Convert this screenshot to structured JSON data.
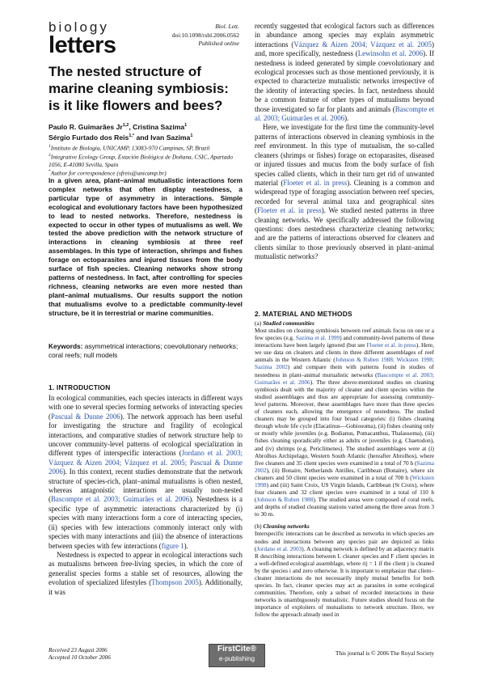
{
  "journal": {
    "logo_line1": "biology",
    "logo_line2": "letters",
    "name": "Biol. Lett.",
    "doi": "doi:10.1098/rsbl.2006.0562",
    "status": "Published online"
  },
  "title": "The nested structure of marine cleaning symbiosis: is it like flowers and bees?",
  "authors": {
    "line1": "Paulo R. Guimarães Jr",
    "line1_sup": "1,2",
    "name2": ", Cristina Sazima",
    "name2_sup": "1",
    "line2": "Sérgio Furtado dos Reis",
    "line2_sup": "1,*",
    "name4": " and Ivan Sazima",
    "name4_sup": "1"
  },
  "affiliations": [
    {
      "num": "1",
      "text": "Instituto de Biologia, UNICAMP, 13083-970 Campinas, SP, Brazil"
    },
    {
      "num": "2",
      "text": "Integrative Ecology Group, Estación Biológica de Doñana, CSIC, Apartado 1056, E-41080 Sevilla, Spain"
    },
    {
      "num": "*",
      "text": "Author for correspondence (sfreis@unicamp.br)"
    }
  ],
  "abstract": "In a given area, plant–animal mutualistic interactions form complex networks that often display nestedness, a particular type of asymmetry in interactions. Simple ecological and evolutionary factors have been hypothesized to lead to nested networks. Therefore, nestedness is expected to occur in other types of mutualisms as well. We tested the above prediction with the network structure of interactions in cleaning symbiosis at three reef assemblages. In this type of interaction, shrimps and fishes forage on ectoparasites and injured tissues from the body surface of fish species. Cleaning networks show strong patterns of nestedness. In fact, after controlling for species richness, cleaning networks are even more nested than plant–animal mutualisms. Our results support the notion that mutualisms evolve to a predictable community-level structure, be it in terrestrial or marine communities.",
  "keywords": {
    "label": "Keywords:",
    "text": " asymmetrical interactions; coevolutionary networks; coral reefs; null models"
  },
  "intro": {
    "heading": "1. INTRODUCTION",
    "p1_a": "In ecological communities, each species interacts in different ways with one to several species forming networks of interacting species (",
    "p1_c1": "Pascual & Dunne 2006",
    "p1_b": "). The network approach has been useful for investigating the structure and fragility of ecological interactions, and comparative studies of network structure help to uncover community-level patterns of ecological specialization in different types of interspecific interactions (",
    "p1_c2": "Jordano et al. 2003; Vázquez & Aizen 2004; Vázquez et al. 2005; Pascual & Dunne 2006",
    "p1_c": "). In this context, recent studies demonstrate that the network structure of species-rich, plant–animal mutualisms is often nested, whereas antagonistic interactions are usually non-nested (",
    "p1_c3": "Bascompte et al. 2003; Guimarães et al. 2006",
    "p1_d": "). Nestedness is a specific type of asymmetric interactions characterized by (i) species with many interactions form a core of interacting species, (ii) species with few interactions commonly interact only with species with many interactions and (iii) the absence of interactions between species with few interactions (",
    "p1_c4": "figure 1",
    "p1_e": ").",
    "p2_a": "Nestedness is expected to appear in ecological interactions such as mutualisms between free-living species, in which the core of generalist species forms a stable set of resources, allowing the evolution of specialized lifestyles (",
    "p2_c1": "Thompson 2005",
    "p2_b": "). Additionally, it was"
  },
  "right_col": {
    "p1_a": "recently suggested that ecological factors such as differences in abundance among species may explain asymmetric interactions (",
    "p1_c1": "Vázquez & Aizen 2004; Vázquez et al. 2005",
    "p1_b": ") and, more specifically, nestedness (",
    "p1_c2": "Lewinsohn et al. 2006",
    "p1_c": "). If nestedness is indeed generated by simple coevolutionary and ecological processes such as those mentioned previously, it is expected to characterize mutualistic networks irrespective of the identity of interacting species. In fact, nestedness should be a common feature of other types of mutualisms beyond those investigated so far for plants and animals (",
    "p1_c3": "Bascompte et al. 2003; Guimarães et al. 2006",
    "p1_d": ").",
    "p2_a": "Here, we investigate for the first time the community-level patterns of interactions observed in cleaning symbiosis in the reef environment. In this type of mutualism, the so-called cleaners (shrimps or fishes) forage on ectoparasites, diseased or injured tissues and mucus from the body surface of fish species called clients, which in their turn get rid of unwanted material (",
    "p2_c1": "Floeter et al. in press",
    "p2_b": "). Cleaning is a common and widespread type of foraging association between reef species, recorded for several animal taxa and geographical sites (",
    "p2_c2": "Floeter et al. in press",
    "p2_c": "). We studied nested patterns in three cleaning networks. We specifically addressed the following questions: does nestedness characterize cleaning networks; and are the patterns of interactions observed for cleaners and clients similar to those previously observed in plant–animal mutualistic networks?"
  },
  "methods": {
    "heading": "2. MATERIAL AND METHODS",
    "sub_a_label": "(a)",
    "sub_a_title": "Studied communities",
    "a_text_1": "Most studies on cleaning symbiosis between reef animals focus on one or a few species (e.g. ",
    "a_c1": "Sazima et al. 1999",
    "a_text_2": ") and community-level patterns of these interactions have been largely ignored (but see ",
    "a_c2": "Floeter et al. in press",
    "a_text_3": "). Here, we use data on cleaners and clients in three different assemblages of reef animals in the Western Atlantic (",
    "a_c3": "Johnson & Ruben 1988; Wicksten 1998; Sazima 2002",
    "a_text_4": ") and compare them with patterns found in studies of nestedness in plant–animal mutualistic networks (",
    "a_c4": "Bascompte et al. 2003; Guimarães et al. 2006",
    "a_text_5": "). The three above-mentioned studies on cleaning symbiosis dealt with the majority of cleaner and client species within the studied assemblages and thus are appropriate for assessing community-level patterns. Moreover, these assemblages have more than three species of cleaners each, allowing the emergence of nestedness. The studied cleaners may be grouped into four broad categories: (i) fishes cleaning through whole life cycle (Elacatinus—Gobiosoma), (ii) fishes cleaning only or mostly while juveniles (e.g. Bodianus, Pomacanthus, Thalassoma), (iii) fishes cleaning sporadically either as adults or juveniles (e.g. Chaetodon), and (iv) shrimps (e.g. Periclimenes). The studied assemblages were at (i) Abrolhos Archipelago, Western South Atlantic (hereafter Abrolhos), where five cleaners and 35 client species were examined in a total of 70 h (",
    "a_c5": "Sazima 2002",
    "a_text_6": "), (ii) Bonaire, Netherlands Antilles, Caribbean (Bonaire), where six cleaners and 50 client species were examined in a total of 700 h (",
    "a_c6": "Wicksten 1998",
    "a_text_7": ") and (iii) Saint Croix, US Virgin Islands, Caribbean (St Croix), where four cleaners and 32 client species were examined in a total of 110 h (",
    "a_c7": "Johnson & Ruben 1988",
    "a_text_8": "). The studied areas were composed of coral reefs, and depths of studied cleaning stations varied among the three areas from 3 to 30 m.",
    "sub_b_label": "(b)",
    "sub_b_title": "Cleaning networks",
    "b_text_1": "Interspecific interactions can be described as networks in which species are nodes and interactions between any species pair are depicted as links (",
    "b_c1": "Jordano et al. 2003",
    "b_text_2": "). A cleaning network is defined by an adjacency matrix R describing interactions between L cleaner species and F client species in a well-defined ecological assemblage, where rij = 1 if the client j is cleaned by the species i and zero otherwise. It is important to emphasize that client–cleaner interactions do not necessarily imply mutual benefits for both species. In fact, cleaner species may act as parasites in some ecological communities. Therefore, only a subset of recorded interactions in these networks is unambiguously mutualistic. Future studies should focus on the importance of exploiters of mutualisms to network structure. Here, we follow the approach already used in"
  },
  "footer": {
    "received": "Received 23 August 2006",
    "accepted": "Accepted 10 October 2006",
    "firstcite_1": "FirstCite®",
    "firstcite_2": "e-publishing",
    "copyright": "This journal is © 2006 The Royal Society"
  }
}
